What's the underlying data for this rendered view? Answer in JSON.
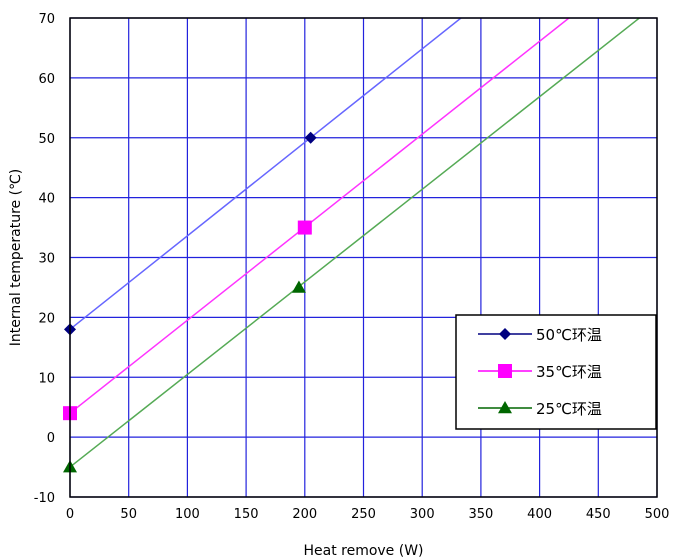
{
  "chart_data": {
    "type": "line",
    "xlabel": "Heat remove (W)",
    "ylabel": "Internal temperature (℃)",
    "xlim": [
      0,
      500
    ],
    "ylim": [
      -10,
      70
    ],
    "x_ticks": [
      0,
      50,
      100,
      150,
      200,
      250,
      300,
      350,
      400,
      450,
      500
    ],
    "y_ticks": [
      -10,
      0,
      10,
      20,
      30,
      40,
      50,
      60,
      70
    ],
    "grid": true,
    "legend_position": "lower-right",
    "series": [
      {
        "name": "50℃环温",
        "color": "#6666ff",
        "marker_color": "#000080",
        "marker": "diamond",
        "line": [
          [
            0,
            18
          ],
          [
            333,
            70
          ]
        ],
        "points": [
          [
            0,
            18
          ],
          [
            205,
            50
          ]
        ]
      },
      {
        "name": "35℃环温",
        "color": "#ff33ff",
        "marker_color": "#ff00ff",
        "marker": "square",
        "line": [
          [
            0,
            4
          ],
          [
            425,
            70
          ]
        ],
        "points": [
          [
            0,
            4
          ],
          [
            200,
            35
          ]
        ]
      },
      {
        "name": "25℃环温",
        "color": "#55aa55",
        "marker_color": "#006600",
        "marker": "triangle",
        "line": [
          [
            0,
            -5
          ],
          [
            485,
            70
          ]
        ],
        "points": [
          [
            0,
            -5
          ],
          [
            195,
            25
          ]
        ]
      }
    ]
  }
}
